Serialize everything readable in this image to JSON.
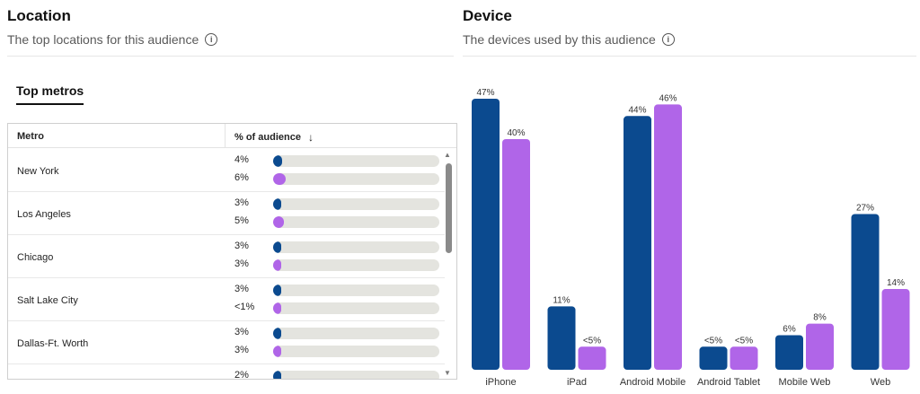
{
  "location": {
    "title": "Location",
    "subtitle": "The top locations for this audience",
    "tab": "Top metros",
    "table": {
      "col_metro": "Metro",
      "col_pct": "% of audience",
      "rows": [
        {
          "metro": "New York",
          "a_label": "4%",
          "a": 4,
          "b_label": "6%",
          "b": 6
        },
        {
          "metro": "Los Angeles",
          "a_label": "3%",
          "a": 3,
          "b_label": "5%",
          "b": 5
        },
        {
          "metro": "Chicago",
          "a_label": "3%",
          "a": 3,
          "b_label": "3%",
          "b": 3
        },
        {
          "metro": "Salt Lake City",
          "a_label": "3%",
          "a": 3,
          "b_label": "<1%",
          "b": 1
        },
        {
          "metro": "Dallas-Ft. Worth",
          "a_label": "3%",
          "a": 3,
          "b_label": "3%",
          "b": 3
        },
        {
          "metro": "",
          "a_label": "2%",
          "a": 2
        }
      ]
    }
  },
  "device": {
    "title": "Device",
    "subtitle": "The devices used by this audience"
  },
  "colors": {
    "series_a": "#0b4a8f",
    "series_b": "#b065e8"
  },
  "chart_data": {
    "type": "bar",
    "categories": [
      "iPhone",
      "iPad",
      "Android Mobile",
      "Android Tablet",
      "Mobile Web",
      "Web"
    ],
    "series": [
      {
        "values": [
          47,
          11,
          44,
          4,
          6,
          27
        ],
        "labels": [
          "47%",
          "11%",
          "44%",
          "<5%",
          "6%",
          "27%"
        ]
      },
      {
        "values": [
          40,
          4,
          46,
          4,
          8,
          14
        ],
        "labels": [
          "40%",
          "<5%",
          "46%",
          "<5%",
          "8%",
          "14%"
        ]
      }
    ],
    "ylim": [
      0,
      47
    ]
  }
}
